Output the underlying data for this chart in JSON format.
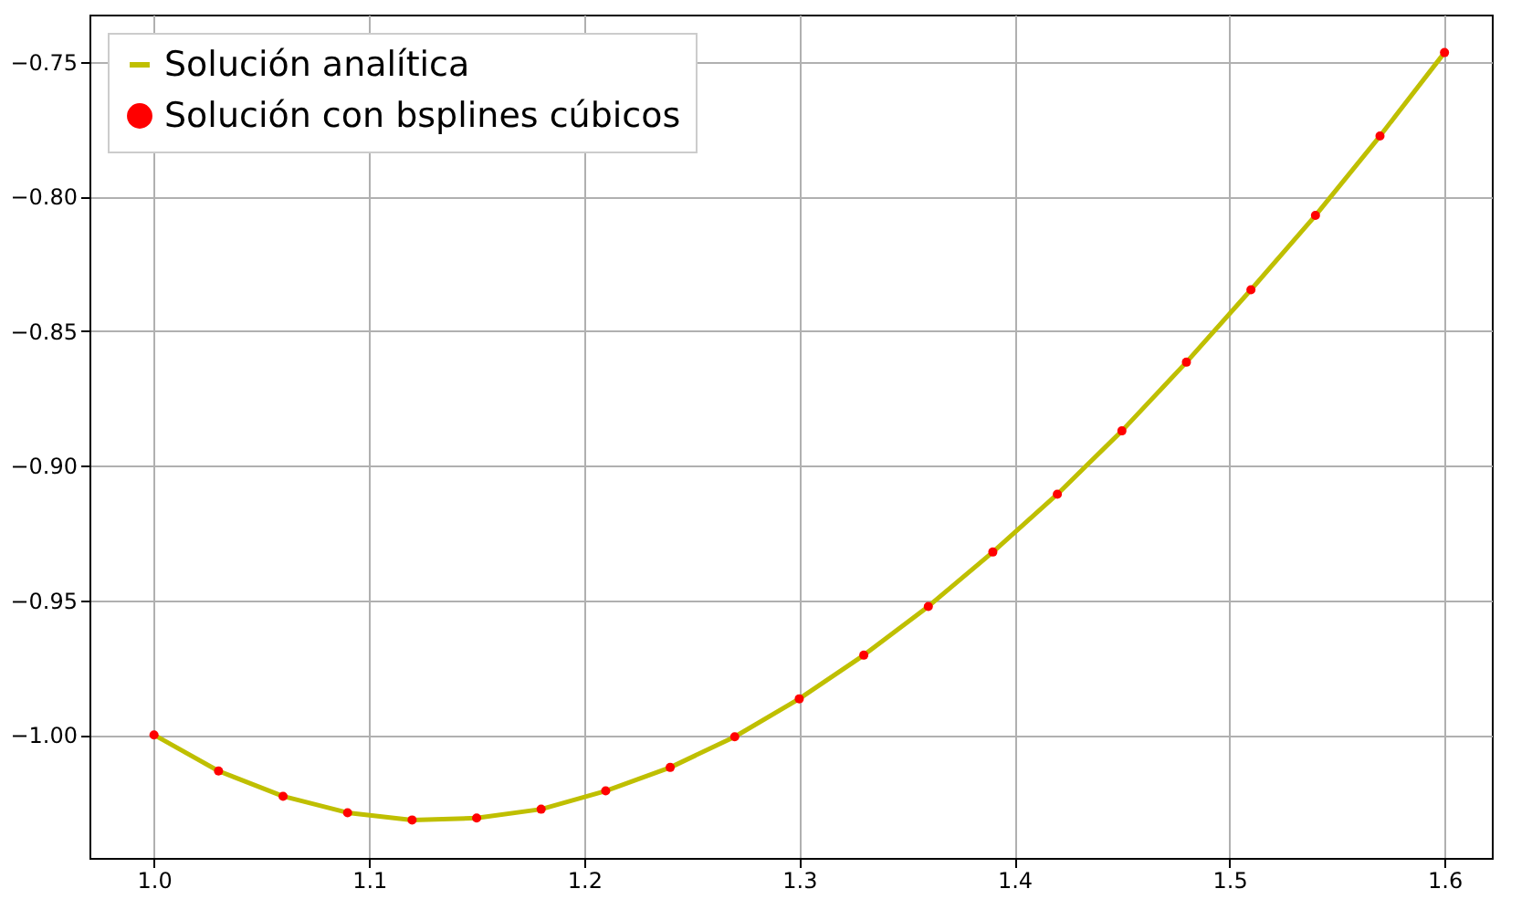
{
  "chart_data": {
    "type": "line",
    "x": [
      1.0,
      1.03,
      1.06,
      1.09,
      1.12,
      1.15,
      1.18,
      1.21,
      1.24,
      1.27,
      1.3,
      1.33,
      1.36,
      1.39,
      1.42,
      1.45,
      1.48,
      1.51,
      1.54,
      1.57,
      1.6
    ],
    "series": [
      {
        "name": "Solución analítica",
        "color": "#bfbf00",
        "line_style": "solid",
        "values": [
          -1.0,
          -1.0134,
          -1.0228,
          -1.0289,
          -1.0316,
          -1.0309,
          -1.0276,
          -1.0208,
          -1.0121,
          -1.0007,
          -0.9866,
          -0.9704,
          -0.9523,
          -0.9321,
          -0.9106,
          -0.8871,
          -0.8616,
          -0.8347,
          -0.8071,
          -0.7776,
          -0.7466
        ]
      },
      {
        "name": "Solución con bsplines cúbicos",
        "type": "scatter",
        "color": "#ff0000",
        "marker": "circle",
        "values": [
          -1.0,
          -1.0134,
          -1.0228,
          -1.0289,
          -1.0316,
          -1.0309,
          -1.0276,
          -1.0208,
          -1.0121,
          -1.0007,
          -0.9866,
          -0.9704,
          -0.9523,
          -0.9321,
          -0.9106,
          -0.8871,
          -0.8616,
          -0.8347,
          -0.8071,
          -0.7776,
          -0.7466
        ]
      }
    ],
    "xlim": [
      0.97,
      1.622
    ],
    "ylim": [
      -1.0457,
      -0.7325
    ],
    "xticks": [
      {
        "value": 1.0,
        "label": "1.0"
      },
      1.1,
      1.2,
      1.3,
      1.4,
      1.5,
      1.6
    ],
    "yticks": [
      {
        "value": -1.0,
        "label": "−1.00"
      },
      {
        "value": -0.95,
        "label": "−0.95"
      },
      {
        "value": -0.9,
        "label": "−0.90"
      },
      {
        "value": -0.85,
        "label": "−0.85"
      },
      {
        "value": -0.8,
        "label": "−0.80"
      },
      {
        "value": -0.75,
        "label": "−0.75"
      }
    ],
    "grid": true,
    "legend": "top left"
  }
}
